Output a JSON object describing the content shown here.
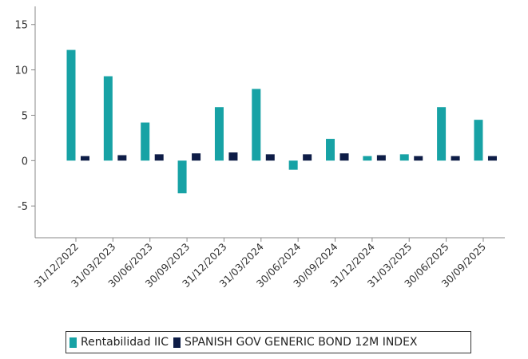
{
  "chart_data": {
    "type": "bar",
    "categories": [
      "31/12/2022",
      "31/03/2023",
      "30/06/2023",
      "30/09/2023",
      "31/12/2023",
      "31/03/2024",
      "30/06/2024",
      "30/09/2024",
      "31/12/2024",
      "31/03/2025",
      "30/06/2025",
      "30/09/2025"
    ],
    "series": [
      {
        "name": "Rentabilidad IIC",
        "color": "#17a2a5",
        "values": [
          12.2,
          9.3,
          4.2,
          -3.6,
          5.9,
          7.9,
          -1.0,
          2.4,
          0.5,
          0.7,
          5.9,
          4.5
        ]
      },
      {
        "name": "SPANISH GOV GENERIC BOND 12M INDEX",
        "color": "#0e1d47",
        "values": [
          0.5,
          0.6,
          0.7,
          0.8,
          0.9,
          0.7,
          0.7,
          0.8,
          0.6,
          0.5,
          0.5,
          0.5
        ]
      }
    ],
    "yticks": [
      15,
      10,
      5,
      0,
      -5
    ],
    "ylim": [
      -8.5,
      17
    ],
    "title": "",
    "xlabel": "",
    "ylabel": "",
    "legend": "bottom",
    "grid": false
  }
}
